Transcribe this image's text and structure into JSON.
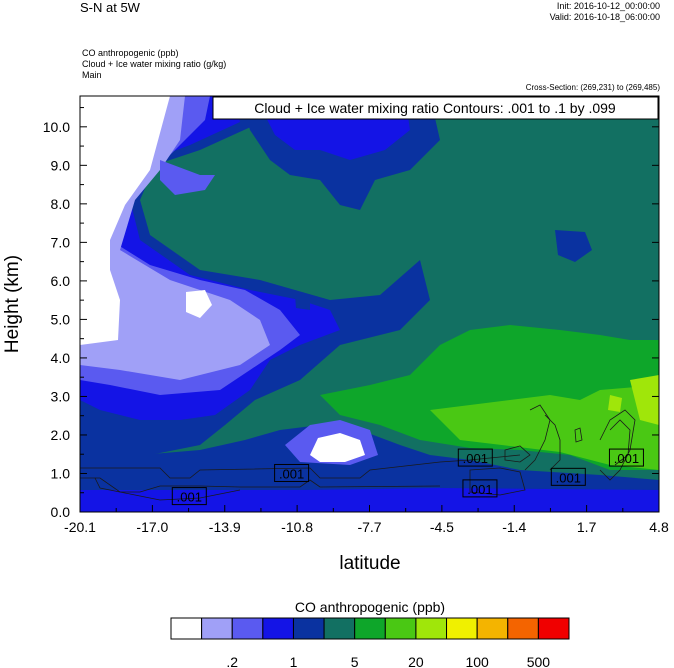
{
  "header": {
    "title": "S-N at 5W",
    "init": "Init: 2016-10-12_00:00:00",
    "valid": "Valid: 2016-10-18_06:00:00",
    "field1": "CO anthropogenic   (ppb)",
    "field2": "Cloud + Ice water mixing ratio   (g/kg)",
    "field3": "Main",
    "cross_section": "Cross-Section: (269,231) to (269,485)"
  },
  "chart_data": {
    "type": "heatmap",
    "title": "Cloud + Ice water mixing ratio Contours: .001 to .1 by .099",
    "xlabel": "latitude",
    "ylabel": "Height (km)",
    "x_ticks": [
      "-20.1",
      "-17.0",
      "-13.9",
      "-10.8",
      "-7.7",
      "-4.5",
      "-1.4",
      "1.7",
      "4.8"
    ],
    "xlim": [
      -20.1,
      4.8
    ],
    "y_ticks": [
      "0.0",
      "1.0",
      "2.0",
      "3.0",
      "4.0",
      "5.0",
      "6.0",
      "7.0",
      "8.0",
      "9.0",
      "10.0"
    ],
    "ylim": [
      0.0,
      10.8
    ],
    "contour_labels": [
      {
        "text": ".001",
        "lat": -15.4,
        "h": 0.4
      },
      {
        "text": ".001",
        "lat": -11.0,
        "h": 1.0
      },
      {
        "text": ".001",
        "lat": -3.1,
        "h": 1.4
      },
      {
        "text": ".001",
        "lat": -2.9,
        "h": 0.6
      },
      {
        "text": ".001",
        "lat": 0.9,
        "h": 0.9
      },
      {
        "text": ".001",
        "lat": 3.4,
        "h": 1.4
      }
    ],
    "colorbar": {
      "label": "CO anthropogenic  (ppb)",
      "tick_labels": [
        ".2",
        "1",
        "5",
        "20",
        "100",
        "500"
      ],
      "colors": [
        "#ffffff",
        "#a0a0f7",
        "#5a5af0",
        "#1414e6",
        "#0a32a0",
        "#127062",
        "#0ea62a",
        "#4ac814",
        "#a0e60a",
        "#f0f000",
        "#f4b400",
        "#f46400",
        "#f00000"
      ]
    }
  }
}
